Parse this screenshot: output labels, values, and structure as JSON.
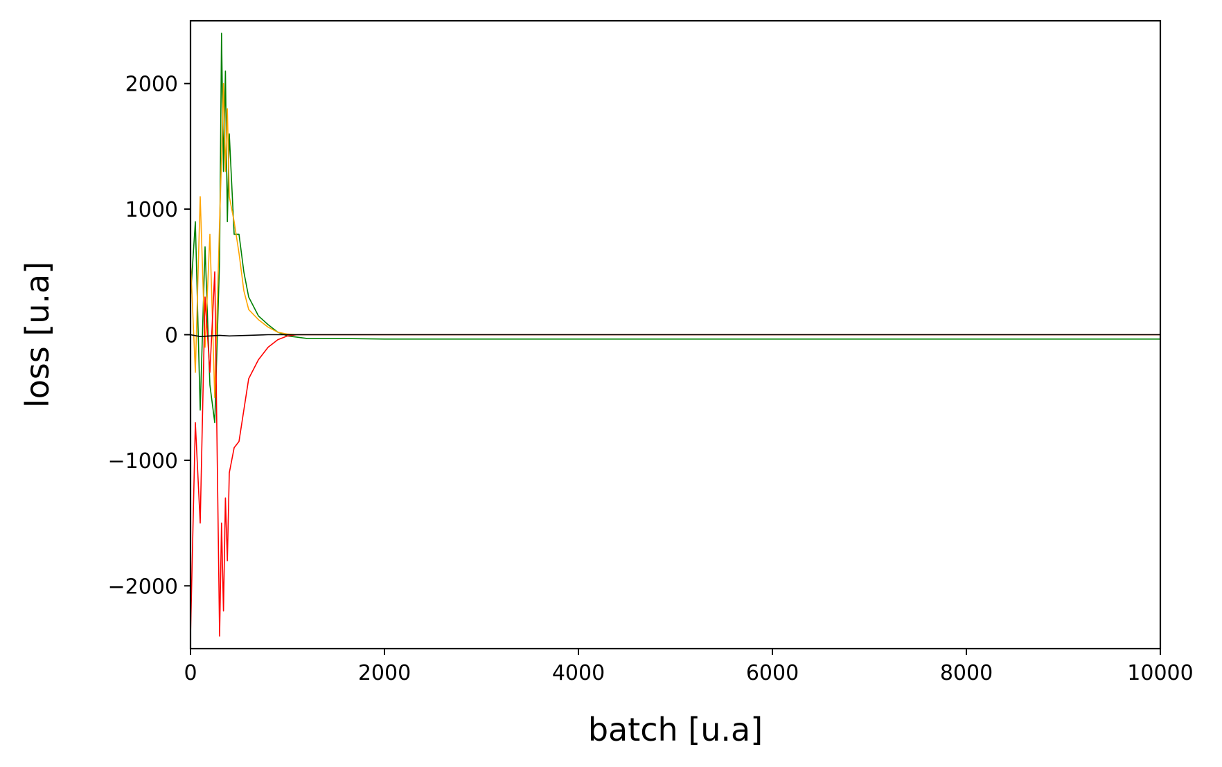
{
  "chart_data": {
    "type": "line",
    "title": "",
    "xlabel": "batch [u.a]",
    "ylabel": "loss [u.a]",
    "xlim": [
      0,
      10000
    ],
    "ylim": [
      -2500,
      2500
    ],
    "xticks": [
      0,
      2000,
      4000,
      6000,
      8000,
      10000
    ],
    "xtick_labels": [
      "0",
      "2000",
      "4000",
      "6000",
      "8000",
      "10000"
    ],
    "yticks": [
      -2000,
      -1000,
      0,
      1000,
      2000
    ],
    "ytick_labels": [
      "−2000",
      "−1000",
      "0",
      "1000",
      "2000"
    ],
    "grid": false,
    "legend": "none",
    "series": [
      {
        "color": "#008000",
        "x": [
          0,
          50,
          100,
          150,
          200,
          250,
          300,
          320,
          340,
          360,
          380,
          400,
          450,
          500,
          550,
          600,
          700,
          800,
          900,
          1000,
          1100,
          1200,
          1500,
          2000,
          3000,
          4000,
          5000,
          6000,
          7000,
          8000,
          9000,
          10000
        ],
        "values": [
          300,
          900,
          -600,
          700,
          -400,
          -700,
          600,
          2400,
          1300,
          2100,
          900,
          1600,
          800,
          800,
          500,
          300,
          150,
          80,
          20,
          -10,
          -20,
          -30,
          -30,
          -35,
          -35,
          -35,
          -35,
          -35,
          -35,
          -35,
          -35,
          -35
        ]
      },
      {
        "color": "#ffa500",
        "x": [
          0,
          50,
          100,
          150,
          200,
          250,
          300,
          320,
          340,
          360,
          380,
          400,
          450,
          500,
          550,
          600,
          700,
          800,
          900,
          1000,
          1100,
          1200,
          1500,
          2000,
          3000,
          4000,
          5000,
          6000,
          7000,
          8000,
          9000,
          10000
        ],
        "values": [
          600,
          -300,
          1100,
          -100,
          800,
          -500,
          900,
          1400,
          2000,
          1300,
          1800,
          1100,
          900,
          650,
          350,
          200,
          120,
          60,
          20,
          5,
          0,
          0,
          0,
          0,
          0,
          0,
          0,
          0,
          0,
          0,
          0,
          0
        ]
      },
      {
        "color": "#ff0000",
        "x": [
          0,
          50,
          100,
          150,
          200,
          250,
          300,
          320,
          340,
          360,
          380,
          400,
          450,
          500,
          550,
          600,
          700,
          800,
          900,
          1000,
          1100,
          1200,
          1500,
          2000,
          3000,
          4000,
          5000,
          6000,
          7000,
          8000,
          9000,
          10000
        ],
        "values": [
          -2400,
          -700,
          -1500,
          300,
          -300,
          500,
          -2400,
          -1500,
          -2200,
          -1300,
          -1800,
          -1100,
          -900,
          -850,
          -600,
          -350,
          -200,
          -100,
          -40,
          -10,
          0,
          0,
          0,
          0,
          0,
          0,
          0,
          0,
          0,
          0,
          0,
          0
        ]
      },
      {
        "color": "#000000",
        "x": [
          0,
          100,
          200,
          300,
          400,
          600,
          800,
          1000,
          2000,
          4000,
          6000,
          8000,
          10000
        ],
        "values": [
          0,
          -15,
          -10,
          -5,
          -10,
          -5,
          0,
          0,
          0,
          0,
          0,
          0,
          0
        ]
      }
    ]
  }
}
